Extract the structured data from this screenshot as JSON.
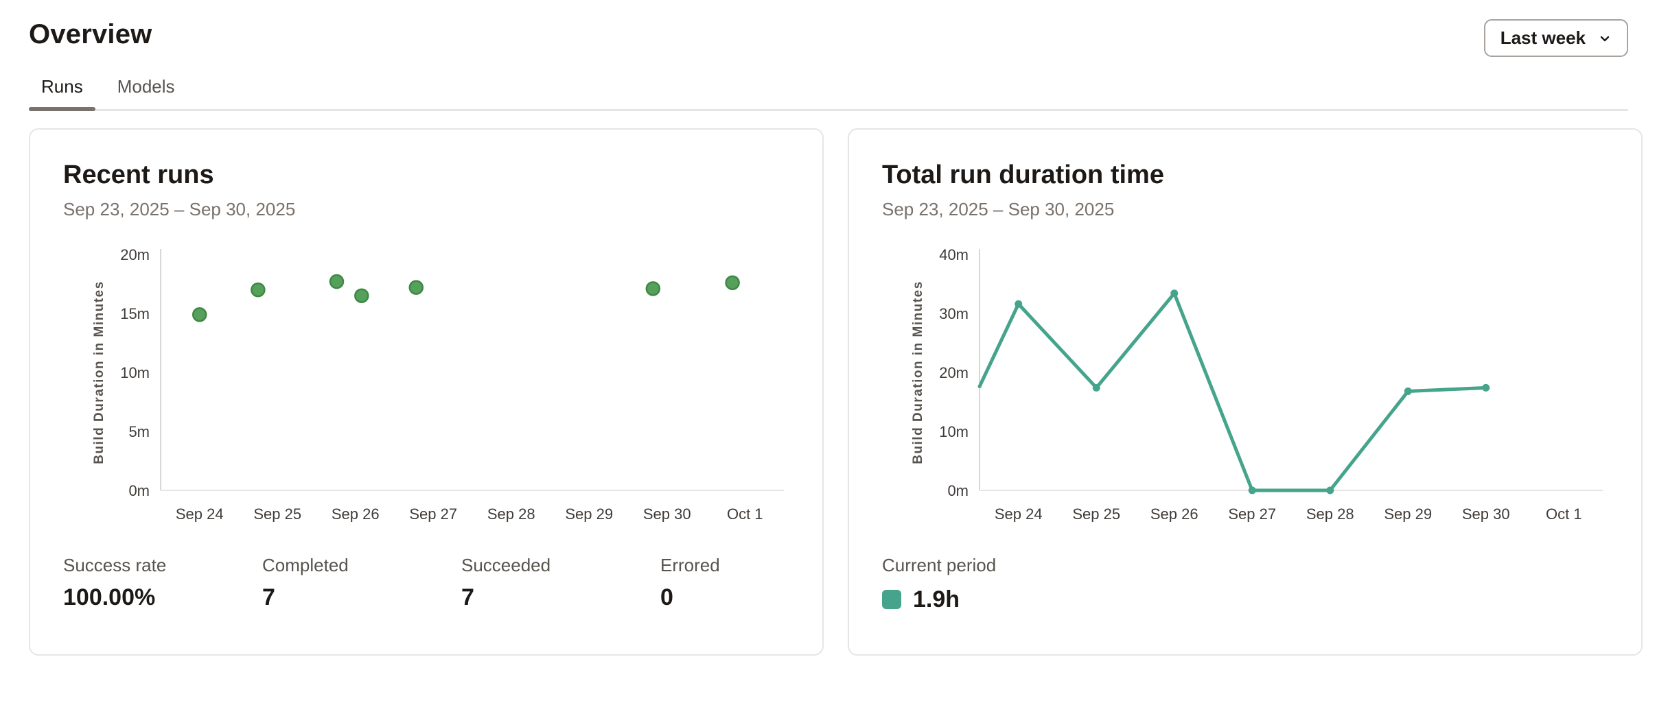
{
  "page": {
    "title": "Overview"
  },
  "period_selector": {
    "value": "Last week",
    "icon": "chevron-down-icon"
  },
  "tabs": [
    {
      "label": "Runs",
      "active": true
    },
    {
      "label": "Models",
      "active": false
    }
  ],
  "colors": {
    "scatter_point_fill": "#55a15b",
    "scatter_point_border": "#3f8746",
    "line_color": "#45a48b",
    "legend_swatch": "#45a48b",
    "active_tab_underline": "#78716c",
    "card_border": "#e7e5e4"
  },
  "chart_data": [
    {
      "type": "scatter",
      "title": "Recent runs",
      "subtitle": "Sep 23, 2025 – Sep 30, 2025",
      "ylabel": "Build Duration in Minutes",
      "ylim": [
        0,
        20
      ],
      "yticks": [
        {
          "value": 0,
          "label": "0m"
        },
        {
          "value": 5,
          "label": "5m"
        },
        {
          "value": 10,
          "label": "10m"
        },
        {
          "value": 15,
          "label": "15m"
        },
        {
          "value": 20,
          "label": "20m"
        }
      ],
      "categories": [
        "Sep 24",
        "Sep 25",
        "Sep 26",
        "Sep 27",
        "Sep 28",
        "Sep 29",
        "Sep 30",
        "Oct 1"
      ],
      "x_unit": "category-index (fractional = run timestamp within day)",
      "points": [
        {
          "x": 0.0,
          "y": 14.9
        },
        {
          "x": 0.75,
          "y": 17.0
        },
        {
          "x": 1.76,
          "y": 17.7
        },
        {
          "x": 2.08,
          "y": 16.5
        },
        {
          "x": 2.78,
          "y": 17.2
        },
        {
          "x": 5.82,
          "y": 17.1
        },
        {
          "x": 6.84,
          "y": 17.6
        }
      ],
      "point_color": "#55a15b",
      "point_border": "#3f8746",
      "grid": false,
      "stats": [
        {
          "label": "Success rate",
          "value": "100.00%"
        },
        {
          "label": "Completed",
          "value": "7"
        },
        {
          "label": "Succeeded",
          "value": "7"
        },
        {
          "label": "Errored",
          "value": "0"
        }
      ]
    },
    {
      "type": "line",
      "title": "Total run duration time",
      "subtitle": "Sep 23, 2025 – Sep 30, 2025",
      "ylabel": "Build Duration in Minutes",
      "ylim": [
        0,
        40
      ],
      "yticks": [
        {
          "value": 0,
          "label": "0m"
        },
        {
          "value": 10,
          "label": "10m"
        },
        {
          "value": 20,
          "label": "20m"
        },
        {
          "value": 30,
          "label": "30m"
        },
        {
          "value": 40,
          "label": "40m"
        }
      ],
      "categories": [
        "Sep 24",
        "Sep 25",
        "Sep 26",
        "Sep 27",
        "Sep 28",
        "Sep 29",
        "Sep 30",
        "Oct 1"
      ],
      "x_unit": "category-index (-0.5 = clipped start at axis, Sep 23)",
      "points": [
        {
          "x": -0.5,
          "y": 17.6,
          "marker": false
        },
        {
          "x": 0,
          "y": 31.6
        },
        {
          "x": 1,
          "y": 17.4
        },
        {
          "x": 2,
          "y": 33.4
        },
        {
          "x": 3,
          "y": 0
        },
        {
          "x": 4,
          "y": 0
        },
        {
          "x": 5,
          "y": 16.8
        },
        {
          "x": 6,
          "y": 17.4
        }
      ],
      "line_color": "#45a48b",
      "grid": false,
      "legend": {
        "label": "Current period",
        "value": "1.9h",
        "swatch_color": "#45a48b",
        "position": "bottom-left"
      }
    }
  ]
}
